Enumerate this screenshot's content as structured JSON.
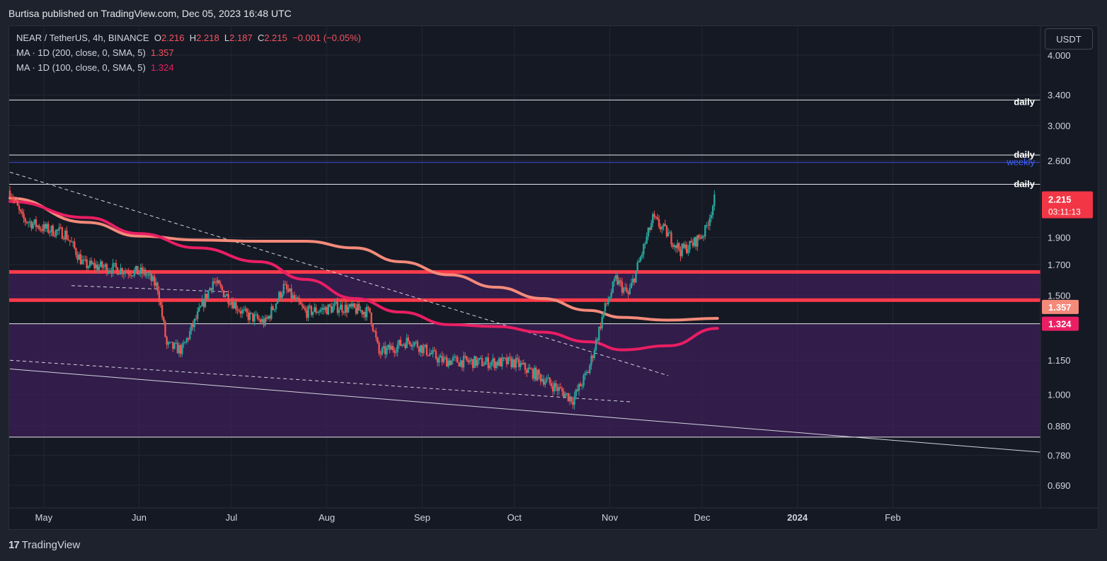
{
  "published": "Burtisa published on TradingView.com, Dec 05, 2023 16:48 UTC",
  "legend": {
    "symbol": "NEAR / TetherUS, 4h, BINANCE",
    "o_label": "O",
    "o_value": "2.216",
    "h_label": "H",
    "h_value": "2.218",
    "l_label": "L",
    "l_value": "2.187",
    "c_label": "C",
    "c_value": "2.215",
    "change": "−0.001 (−0.05%)",
    "ma200_label": "MA · 1D (200, close, 0, SMA, 5)",
    "ma200_value": "1.357",
    "ma100_label": "MA · 1D (100, close, 0, SMA, 5)",
    "ma100_value": "1.324"
  },
  "currency_button": "USDT",
  "footer_brand": "TradingView",
  "footer_logo": "17",
  "colors": {
    "background": "#151924",
    "grid": "#232733",
    "bull": "#26a69a",
    "bear": "#ef5350",
    "ma200": "#f48a7a",
    "ma100": "#e91e63",
    "resistance_zone": "#ff3b4b",
    "zone_fill": "#4a1f6a",
    "price_badge": "#f23645"
  },
  "chart_data": {
    "type": "candlestick",
    "y_scale": "log",
    "ylim": [
      0.64,
      4.4
    ],
    "y_ticks": [
      "4.000",
      "3.400",
      "3.000",
      "2.600",
      "1.900",
      "1.700",
      "1.500",
      "1.150",
      "1.000",
      "0.880",
      "0.780",
      "0.690"
    ],
    "y_tick_values": [
      4.0,
      3.4,
      3.0,
      2.6,
      1.9,
      1.7,
      1.5,
      1.15,
      1.0,
      0.88,
      0.78,
      0.69
    ],
    "x_ticks": [
      "May",
      "Jun",
      "Jul",
      "Aug",
      "Sep",
      "Oct",
      "Nov",
      "Dec",
      "2024",
      "Feb"
    ],
    "x_tick_dates": [
      "2023-05-01",
      "2023-06-01",
      "2023-07-01",
      "2023-08-01",
      "2023-09-01",
      "2023-10-01",
      "2023-11-01",
      "2023-12-01",
      "2024-01-01",
      "2024-02-01"
    ],
    "last_price": "2.215",
    "countdown": "03:11:13",
    "ma_badges": [
      "1.357",
      "1.324"
    ],
    "level_labels": [
      {
        "text": "daily",
        "price": 3.3
      },
      {
        "text": "daily",
        "price": 2.66
      },
      {
        "text": "weekly",
        "price": 2.58
      },
      {
        "text": "daily",
        "price": 2.36
      }
    ],
    "horizontal_levels": [
      3.33,
      2.66,
      2.58,
      2.36,
      1.335,
      0.84
    ],
    "resistance_zone": [
      1.47,
      1.65
    ],
    "purple_zones": [
      [
        1.47,
        1.65
      ],
      [
        0.84,
        1.335
      ]
    ],
    "ma200_points": [
      [
        "2023-04-20",
        2.23
      ],
      [
        "2023-05-15",
        2.02
      ],
      [
        "2023-06-01",
        1.91
      ],
      [
        "2023-06-20",
        1.88
      ],
      [
        "2023-07-10",
        1.87
      ],
      [
        "2023-07-25",
        1.87
      ],
      [
        "2023-08-10",
        1.82
      ],
      [
        "2023-08-25",
        1.72
      ],
      [
        "2023-09-10",
        1.63
      ],
      [
        "2023-09-25",
        1.55
      ],
      [
        "2023-10-10",
        1.48
      ],
      [
        "2023-10-25",
        1.41
      ],
      [
        "2023-11-05",
        1.37
      ],
      [
        "2023-11-20",
        1.355
      ],
      [
        "2023-12-06",
        1.365
      ]
    ],
    "ma100_points": [
      [
        "2023-04-20",
        2.2
      ],
      [
        "2023-05-15",
        2.06
      ],
      [
        "2023-06-01",
        1.93
      ],
      [
        "2023-06-20",
        1.82
      ],
      [
        "2023-07-10",
        1.72
      ],
      [
        "2023-07-25",
        1.6
      ],
      [
        "2023-08-10",
        1.48
      ],
      [
        "2023-08-25",
        1.4
      ],
      [
        "2023-09-10",
        1.33
      ],
      [
        "2023-09-25",
        1.32
      ],
      [
        "2023-10-10",
        1.29
      ],
      [
        "2023-10-25",
        1.24
      ],
      [
        "2023-11-05",
        1.2
      ],
      [
        "2023-11-20",
        1.22
      ],
      [
        "2023-12-06",
        1.31
      ]
    ],
    "price_path": [
      [
        "2023-04-20",
        2.3
      ],
      [
        "2023-04-24",
        2.05
      ],
      [
        "2023-05-01",
        1.97
      ],
      [
        "2023-05-08",
        1.93
      ],
      [
        "2023-05-14",
        1.7
      ],
      [
        "2023-05-25",
        1.67
      ],
      [
        "2023-06-03",
        1.64
      ],
      [
        "2023-06-07",
        1.55
      ],
      [
        "2023-06-10",
        1.22
      ],
      [
        "2023-06-15",
        1.2
      ],
      [
        "2023-06-20",
        1.38
      ],
      [
        "2023-06-25",
        1.59
      ],
      [
        "2023-07-05",
        1.39
      ],
      [
        "2023-07-12",
        1.34
      ],
      [
        "2023-07-18",
        1.55
      ],
      [
        "2023-07-25",
        1.4
      ],
      [
        "2023-08-05",
        1.43
      ],
      [
        "2023-08-15",
        1.4
      ],
      [
        "2023-08-18",
        1.18
      ],
      [
        "2023-08-28",
        1.25
      ],
      [
        "2023-09-07",
        1.15
      ],
      [
        "2023-09-20",
        1.14
      ],
      [
        "2023-10-01",
        1.14
      ],
      [
        "2023-10-10",
        1.07
      ],
      [
        "2023-10-20",
        0.98
      ],
      [
        "2023-10-25",
        1.1
      ],
      [
        "2023-10-30",
        1.4
      ],
      [
        "2023-11-03",
        1.6
      ],
      [
        "2023-11-07",
        1.5
      ],
      [
        "2023-11-11",
        1.75
      ],
      [
        "2023-11-15",
        2.05
      ],
      [
        "2023-11-19",
        1.95
      ],
      [
        "2023-11-24",
        1.8
      ],
      [
        "2023-11-28",
        1.85
      ],
      [
        "2023-12-02",
        1.95
      ],
      [
        "2023-12-05",
        2.215
      ]
    ],
    "trendlines": [
      {
        "style": "dashed",
        "from": [
          "2023-04-20",
          2.48
        ],
        "to": [
          "2023-11-20",
          1.08
        ]
      },
      {
        "style": "dashed",
        "from": [
          "2023-05-10",
          1.56
        ],
        "to": [
          "2023-07-01",
          1.52
        ]
      },
      {
        "style": "dashed",
        "from": [
          "2023-04-20",
          1.15
        ],
        "to": [
          "2023-11-08",
          0.97
        ]
      },
      {
        "style": "solid",
        "from": [
          "2023-04-20",
          1.11
        ],
        "to": [
          "2024-03-20",
          0.79
        ]
      }
    ]
  }
}
